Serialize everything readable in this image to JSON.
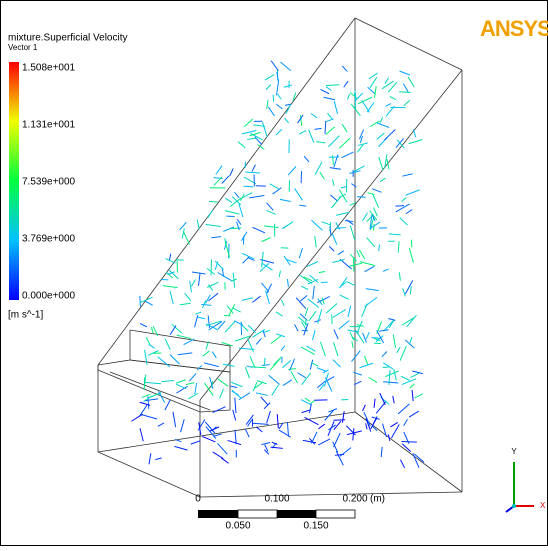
{
  "legend": {
    "title": "mixture.Superficial Velocity",
    "subtitle": "Vector 1",
    "labels": [
      "1.508e+001",
      "1.131e+001",
      "7.539e+000",
      "3.769e+000",
      "0.000e+000"
    ],
    "unit": "[m s^-1]"
  },
  "logo": "ANSYS",
  "scale_bar": {
    "top_labels": [
      "0",
      "0.100",
      "0.200"
    ],
    "unit": "(m)",
    "bottom_labels": [
      "0.050",
      "0.150"
    ]
  },
  "axes_triad": {
    "y": "Y",
    "x": "X"
  }
}
